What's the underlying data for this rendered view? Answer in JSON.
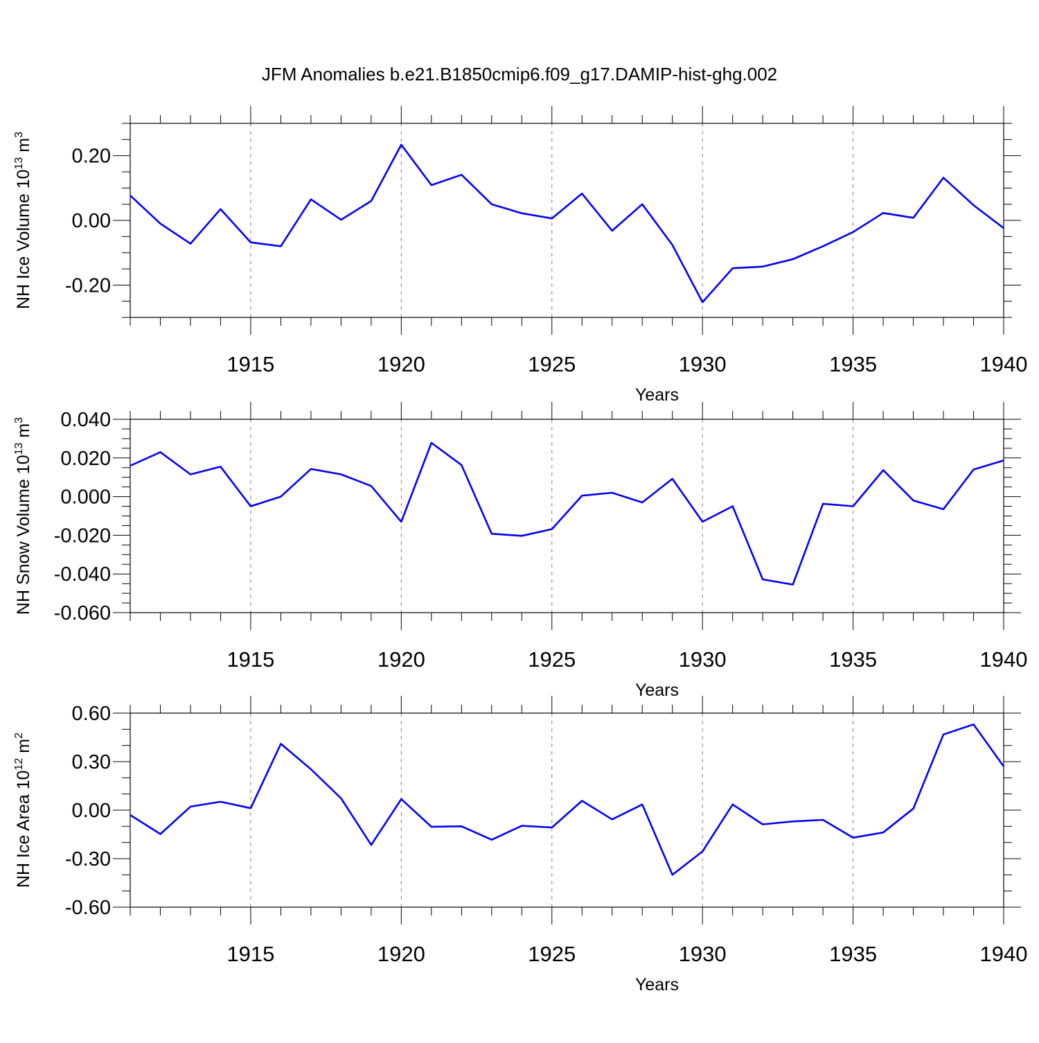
{
  "title": "JFM Anomalies b.e21.B1850cmip6.f09_g17.DAMIP-hist-ghg.002",
  "chart_data": [
    {
      "type": "line",
      "ylabel": {
        "prefix": "NH Ice Volume 10",
        "exp": "13",
        "unit": " m",
        "unit_exp": "3"
      },
      "xlabel": "Years",
      "xlim": [
        1911,
        1940
      ],
      "ylim": [
        -0.3,
        0.3
      ],
      "yticks": [
        -0.2,
        0.0,
        0.2
      ],
      "ytick_labels": [
        "-0.20",
        "0.00",
        "0.20"
      ],
      "ymajor_step": 0.2,
      "yminor_step": 0.05,
      "xticks": [
        1915,
        1920,
        1925,
        1930,
        1935,
        1940
      ],
      "xtick_labels": [
        "1915",
        "1920",
        "1925",
        "1930",
        "1935",
        "1940"
      ],
      "grid": "vertical dashed at major x ticks",
      "color": "#0000ff",
      "series": [
        {
          "x": [
            1911,
            1912,
            1913,
            1914,
            1915,
            1916,
            1917,
            1918,
            1919,
            1920,
            1921,
            1922,
            1923,
            1924,
            1925,
            1926,
            1927,
            1928,
            1929,
            1930,
            1931,
            1932,
            1933,
            1934,
            1935,
            1936,
            1937,
            1938,
            1939,
            1940
          ],
          "values": [
            0.077,
            -0.01,
            -0.072,
            0.035,
            -0.068,
            -0.08,
            0.065,
            0.002,
            0.06,
            0.234,
            0.109,
            0.141,
            0.05,
            0.022,
            0.006,
            0.083,
            -0.032,
            0.05,
            -0.076,
            -0.253,
            -0.148,
            -0.143,
            -0.12,
            -0.08,
            -0.036,
            0.023,
            0.008,
            0.132,
            0.047,
            -0.024
          ]
        }
      ]
    },
    {
      "type": "line",
      "ylabel": {
        "prefix": "NH Snow Volume 10",
        "exp": "13",
        "unit": " m",
        "unit_exp": "3"
      },
      "xlabel": "Years",
      "xlim": [
        1911,
        1940
      ],
      "ylim": [
        -0.06,
        0.04
      ],
      "yticks": [
        -0.06,
        -0.04,
        -0.02,
        0.0,
        0.02,
        0.04
      ],
      "ytick_labels": [
        "-0.060",
        "-0.040",
        "-0.020",
        "0.000",
        "0.020",
        "0.040"
      ],
      "ymajor_step": 0.02,
      "yminor_step": 0.005,
      "xticks": [
        1915,
        1920,
        1925,
        1930,
        1935,
        1940
      ],
      "xtick_labels": [
        "1915",
        "1920",
        "1925",
        "1930",
        "1935",
        "1940"
      ],
      "grid": "vertical dashed at major x ticks",
      "color": "#0000ff",
      "series": [
        {
          "x": [
            1911,
            1912,
            1913,
            1914,
            1915,
            1916,
            1917,
            1918,
            1919,
            1920,
            1921,
            1922,
            1923,
            1924,
            1925,
            1926,
            1927,
            1928,
            1929,
            1930,
            1931,
            1932,
            1933,
            1934,
            1935,
            1936,
            1937,
            1938,
            1939,
            1940
          ],
          "values": [
            0.016,
            0.023,
            0.0115,
            0.0155,
            -0.005,
            0.0,
            0.0143,
            0.0115,
            0.0055,
            -0.013,
            0.0278,
            0.0163,
            -0.0192,
            -0.0203,
            -0.0168,
            0.0005,
            0.002,
            -0.003,
            0.0092,
            -0.013,
            -0.005,
            -0.0428,
            -0.0455,
            -0.0037,
            -0.005,
            0.0137,
            -0.002,
            -0.0065,
            0.014,
            0.0187
          ]
        }
      ]
    },
    {
      "type": "line",
      "ylabel": {
        "prefix": "NH Ice Area 10",
        "exp": "12",
        "unit": " m",
        "unit_exp": "2"
      },
      "xlabel": "Years",
      "xlim": [
        1911,
        1940
      ],
      "ylim": [
        -0.6,
        0.6
      ],
      "yticks": [
        -0.6,
        -0.3,
        0.0,
        0.3,
        0.6
      ],
      "ytick_labels": [
        "-0.60",
        "-0.30",
        "0.00",
        "0.30",
        "0.60"
      ],
      "ymajor_step": 0.3,
      "yminor_step": 0.1,
      "xticks": [
        1915,
        1920,
        1925,
        1930,
        1935,
        1940
      ],
      "xtick_labels": [
        "1915",
        "1920",
        "1925",
        "1930",
        "1935",
        "1940"
      ],
      "grid": "vertical dashed at major x ticks",
      "color": "#0000ff",
      "series": [
        {
          "x": [
            1911,
            1912,
            1913,
            1914,
            1915,
            1916,
            1917,
            1918,
            1919,
            1920,
            1921,
            1922,
            1923,
            1924,
            1925,
            1926,
            1927,
            1928,
            1929,
            1930,
            1931,
            1932,
            1933,
            1934,
            1935,
            1936,
            1937,
            1938,
            1939,
            1940
          ],
          "values": [
            -0.03,
            -0.148,
            0.022,
            0.052,
            0.012,
            0.41,
            0.253,
            0.073,
            -0.215,
            0.068,
            -0.103,
            -0.1,
            -0.183,
            -0.097,
            -0.107,
            0.058,
            -0.057,
            0.035,
            -0.4,
            -0.255,
            0.035,
            -0.088,
            -0.07,
            -0.06,
            -0.17,
            -0.138,
            0.01,
            0.468,
            0.53,
            0.27
          ]
        }
      ]
    }
  ]
}
